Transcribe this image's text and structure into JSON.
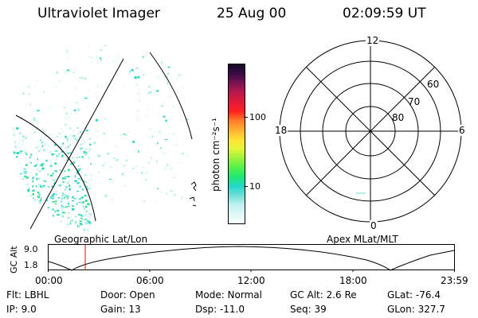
{
  "header": {
    "instrument": "Ultraviolet Imager",
    "date": "25 Aug 00",
    "time": "02:09:59  UT"
  },
  "colorbar": {
    "label": "photon cm⁻²s⁻¹",
    "ticks": [
      "100",
      "10"
    ],
    "colors": [
      "#fbffff",
      "#dff6f6",
      "#bff0ee",
      "#6fe0d8",
      "#22d8c8",
      "#22e870",
      "#55f24a",
      "#9ff23c",
      "#e8f53a",
      "#ffe036",
      "#ffb032",
      "#ff7a28",
      "#ff2020",
      "#e21a3a",
      "#b8184e",
      "#7a1252",
      "#3a0c44",
      "#14082e"
    ]
  },
  "left_panel": {
    "caption": "Geographic Lat/Lon"
  },
  "right_panel": {
    "caption": "Apex MLat/MLT",
    "mlt_labels": {
      "top": "12",
      "right": "6",
      "bottom": "0",
      "left": "18"
    },
    "lat_labels": [
      "60",
      "70",
      "80"
    ]
  },
  "timeline": {
    "ylabel": "GC Alt",
    "yticks": [
      "9.0",
      "1.8"
    ],
    "xticks": [
      "00:00",
      "06:00",
      "12:00",
      "18:00",
      "23:59"
    ],
    "cursor_hours": 2.17
  },
  "info": {
    "row1": [
      "Flt: LBHL",
      "Door: Open",
      "Mode: Normal",
      "GC Alt: 2.6 Re",
      "GLat: -76.4"
    ],
    "row2": [
      "IP:  9.0",
      "Gain: 13",
      "Dsp:  -11.0",
      "Seq: 39",
      "GLon: 327.7"
    ]
  },
  "colors": {
    "cursor": "#ff0000",
    "speckle": "#3ad7c5"
  }
}
